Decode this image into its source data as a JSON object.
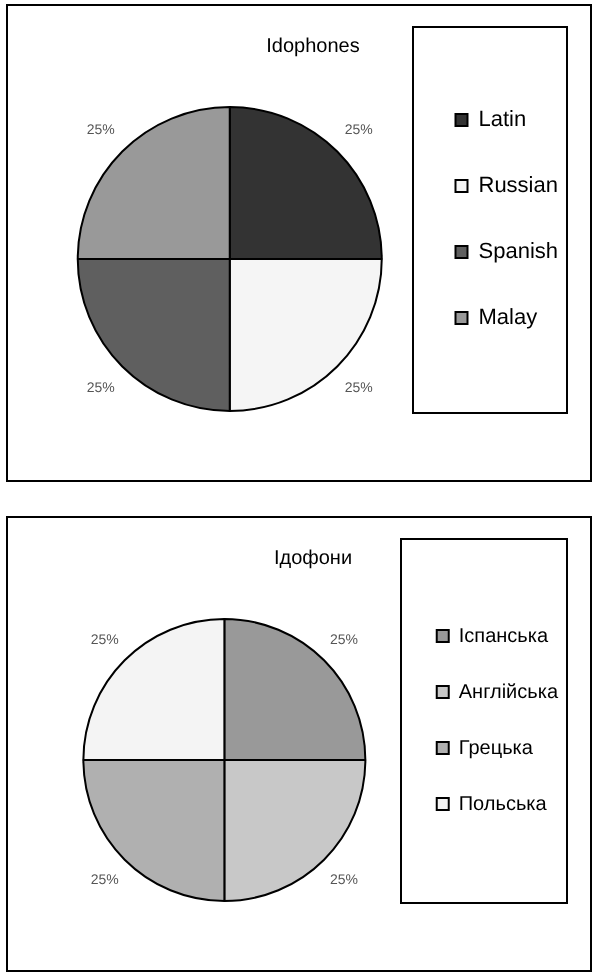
{
  "chart_data": [
    {
      "type": "pie",
      "title": "Idophones",
      "categories": [
        "Latin",
        "Russian",
        "Spanish",
        "Malay"
      ],
      "values": [
        25,
        25,
        25,
        25
      ],
      "colors": [
        "#333333",
        "#f5f5f5",
        "#5f5f5f",
        "#999999"
      ],
      "value_labels": [
        "25%",
        "25%",
        "25%",
        "25%"
      ],
      "legend": "right"
    },
    {
      "type": "pie",
      "title": "Ідофони",
      "categories": [
        "Іспанська",
        "Англійська",
        "Грецька",
        "Польська"
      ],
      "values": [
        25,
        25,
        25,
        25
      ],
      "colors": [
        "#999999",
        "#c8c8c8",
        "#b0b0b0",
        "#f4f4f4"
      ],
      "value_labels": [
        "25%",
        "25%",
        "25%",
        "25%"
      ],
      "legend": "right"
    }
  ]
}
